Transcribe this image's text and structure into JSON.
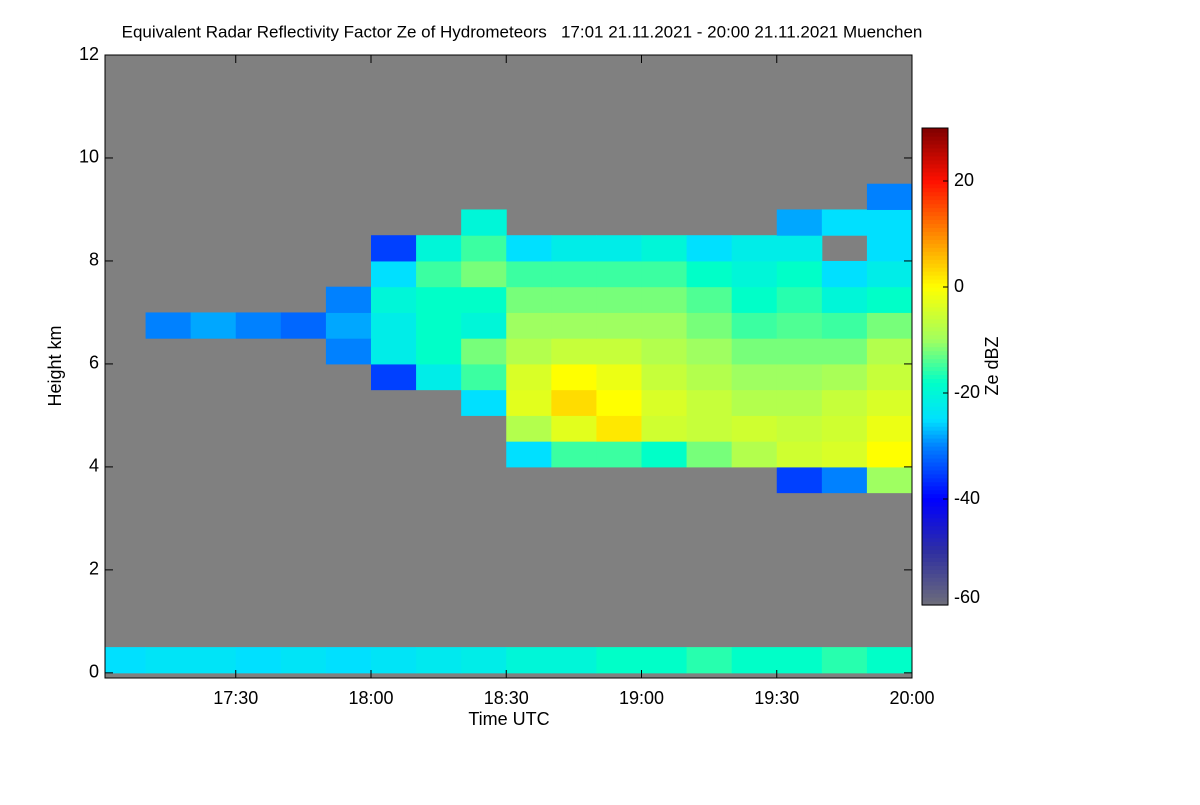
{
  "chart_data": {
    "type": "heatmap",
    "title": "Equivalent Radar Reflectivity Factor Ze of Hydrometeors   17:01 21.11.2021 - 20:00 21.11.2021 Muenchen",
    "xlabel": "Time UTC",
    "ylabel": "Height km",
    "colorbar_label": "Ze dBZ",
    "xlim": [
      1021,
      1200
    ],
    "ylim": [
      -0.1,
      12
    ],
    "xticks": [
      {
        "value": 1050,
        "label": "17:30"
      },
      {
        "value": 1080,
        "label": "18:00"
      },
      {
        "value": 1110,
        "label": "18:30"
      },
      {
        "value": 1140,
        "label": "19:00"
      },
      {
        "value": 1170,
        "label": "19:30"
      },
      {
        "value": 1200,
        "label": "20:00"
      }
    ],
    "yticks": [
      0,
      2,
      4,
      6,
      8,
      10,
      12
    ],
    "zlim": [
      -60,
      30
    ],
    "zticks": [
      -60,
      -40,
      -20,
      0,
      20
    ],
    "background": "#808080",
    "xbins": [
      1021,
      1030,
      1040,
      1050,
      1060,
      1070,
      1080,
      1090,
      1100,
      1110,
      1120,
      1130,
      1140,
      1150,
      1160,
      1170,
      1180,
      1190,
      1200
    ],
    "ybins": [
      0,
      0.5,
      1,
      1.5,
      2,
      2.5,
      3,
      3.5,
      4,
      4.5,
      5,
      5.5,
      6,
      6.5,
      7,
      7.5,
      8,
      8.5,
      9,
      9.5
    ],
    "z": [
      [
        -25,
        -24,
        -24,
        -25,
        -24,
        -25,
        -24,
        -23,
        -22,
        -20,
        -20,
        -18,
        -18,
        -16,
        -18,
        -18,
        -16,
        -18
      ],
      [
        null,
        null,
        null,
        null,
        null,
        null,
        null,
        null,
        null,
        null,
        null,
        null,
        null,
        null,
        null,
        null,
        null,
        null
      ],
      [
        null,
        null,
        null,
        null,
        null,
        null,
        null,
        null,
        null,
        null,
        null,
        null,
        null,
        null,
        null,
        null,
        null,
        null
      ],
      [
        null,
        null,
        null,
        null,
        null,
        null,
        null,
        null,
        null,
        null,
        null,
        null,
        null,
        null,
        null,
        null,
        null,
        null
      ],
      [
        null,
        null,
        null,
        null,
        null,
        null,
        null,
        null,
        null,
        null,
        null,
        null,
        null,
        null,
        null,
        null,
        null,
        null
      ],
      [
        null,
        null,
        null,
        null,
        null,
        null,
        null,
        null,
        null,
        null,
        null,
        null,
        null,
        null,
        null,
        null,
        null,
        null
      ],
      [
        null,
        null,
        null,
        null,
        null,
        null,
        null,
        null,
        null,
        null,
        null,
        null,
        null,
        null,
        null,
        null,
        null,
        null
      ],
      [
        null,
        null,
        null,
        null,
        null,
        null,
        null,
        null,
        null,
        null,
        null,
        null,
        null,
        null,
        null,
        -35,
        -30,
        -10
      ],
      [
        null,
        null,
        null,
        null,
        null,
        null,
        null,
        null,
        null,
        -25,
        -15,
        -15,
        -18,
        -12,
        -8,
        -5,
        -4,
        0
      ],
      [
        null,
        null,
        null,
        null,
        null,
        null,
        null,
        null,
        null,
        -8,
        -3,
        2,
        -5,
        -6,
        -5,
        -6,
        -5,
        -2
      ],
      [
        null,
        null,
        null,
        null,
        null,
        null,
        null,
        null,
        -25,
        -3,
        3,
        0,
        -4,
        -6,
        -8,
        -8,
        -6,
        -4
      ],
      [
        null,
        null,
        null,
        null,
        null,
        null,
        -35,
        -22,
        -15,
        -4,
        0,
        -2,
        -6,
        -8,
        -10,
        -10,
        -9,
        -6
      ],
      [
        null,
        null,
        null,
        null,
        null,
        -30,
        -22,
        -18,
        -12,
        -8,
        -6,
        -6,
        -8,
        -10,
        -12,
        -12,
        -12,
        -8
      ],
      [
        null,
        -30,
        -28,
        -30,
        -32,
        -28,
        -22,
        -18,
        -20,
        -10,
        -10,
        -10,
        -10,
        -12,
        -15,
        -14,
        -15,
        -12
      ],
      [
        null,
        null,
        null,
        null,
        null,
        -30,
        -20,
        -18,
        -18,
        -12,
        -12,
        -12,
        -12,
        -14,
        -18,
        -16,
        -20,
        -18
      ],
      [
        null,
        null,
        null,
        null,
        null,
        null,
        -25,
        -15,
        -12,
        -15,
        -15,
        -15,
        -15,
        -18,
        -20,
        -18,
        -25,
        -22
      ],
      [
        null,
        null,
        null,
        null,
        null,
        null,
        -35,
        -20,
        -15,
        -25,
        -22,
        -22,
        -20,
        -25,
        -22,
        -22,
        null,
        -25
      ],
      [
        null,
        null,
        null,
        null,
        null,
        null,
        null,
        null,
        -20,
        null,
        null,
        null,
        null,
        null,
        null,
        -28,
        -25,
        -25
      ],
      [
        null,
        null,
        null,
        null,
        null,
        null,
        null,
        null,
        null,
        null,
        null,
        null,
        null,
        null,
        null,
        null,
        null,
        -30
      ]
    ]
  }
}
